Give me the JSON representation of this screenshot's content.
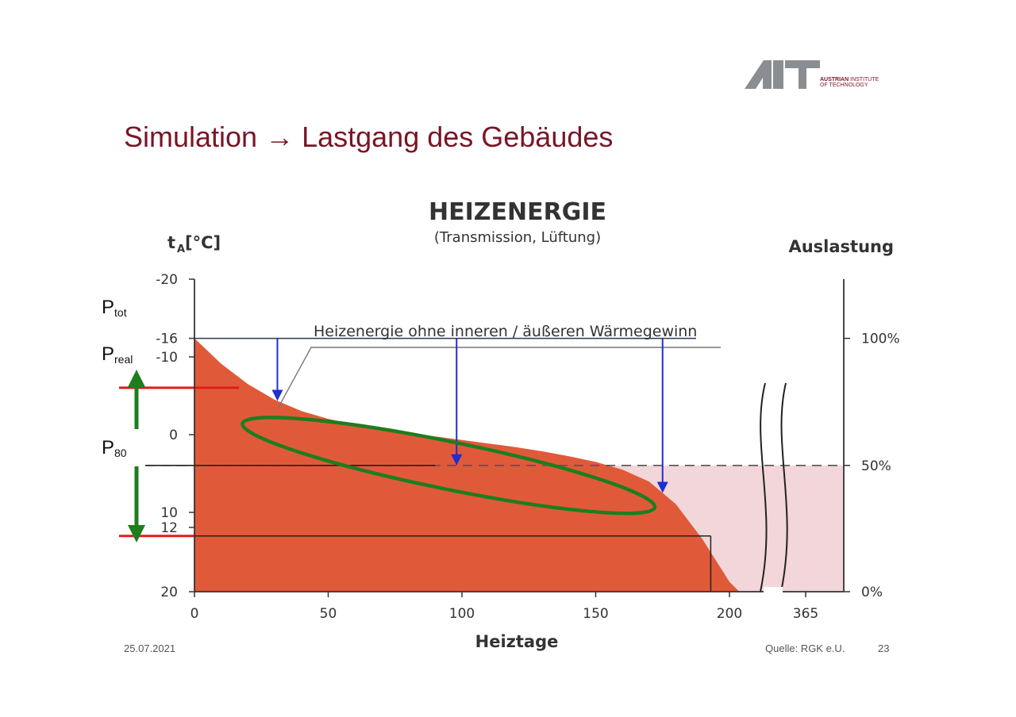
{
  "slide": {
    "title": "Simulation → Lastgang des Gebäudes",
    "date": "25.07.2021",
    "source": "Quelle: RGK e.U.",
    "page_number": "23"
  },
  "logo": {
    "mark": "AIT",
    "line1_bold": "AUSTRIAN",
    "line1": "INSTITUTE",
    "line2": "OF TECHNOLOGY"
  },
  "colors": {
    "title": "#7a1526",
    "heating_fill": "#e05a3a",
    "heating_fill_light": "#ee6a3f",
    "base_fill": "#f2d6d9",
    "arrow_blue": "#1f2fd0",
    "ellipse_green": "#1e7d1e",
    "limit_red": "#e31b1b"
  },
  "p_labels": [
    {
      "main": "P",
      "sub": "tot"
    },
    {
      "main": "P",
      "sub": "real"
    },
    {
      "main": "P",
      "sub": "80"
    }
  ],
  "chart_data": {
    "type": "area",
    "title": "HEIZENERGIE",
    "subtitle": "(Transmission, Lüftung)",
    "xlabel": "Heiztage",
    "ylabel_left": "t",
    "ylabel_left_sub": "A",
    "ylabel_left_unit": " [°C]",
    "ylabel_right": "Auslastung",
    "annotation": "Heizenergie ohne inneren / äußeren Wärmegewinn",
    "x_ticks": [
      "0",
      "50",
      "100",
      "150",
      "200",
      "365"
    ],
    "y_ticks_left": [
      "-20",
      "-16",
      "-10",
      "0",
      "10",
      "12",
      "20"
    ],
    "y_ticks_left_values": [
      -20,
      -16,
      -10,
      0,
      10,
      12,
      20
    ],
    "y_ticks_right": [
      "100%",
      "50%",
      "0%"
    ],
    "y_ticks_right_values": [
      100,
      50,
      0
    ],
    "xlim": [
      0,
      240
    ],
    "ylim_left": [
      -20,
      20
    ],
    "curve": {
      "x": [
        0,
        10,
        20,
        30,
        40,
        50,
        60,
        70,
        80,
        90,
        100,
        110,
        120,
        130,
        140,
        150,
        160,
        170,
        180,
        190,
        200,
        204
      ],
      "t": [
        -16,
        -12.4,
        -9.5,
        -7.3,
        -5.7,
        -4.6,
        -3.8,
        -3.1,
        -2.6,
        -2.1,
        -1.6,
        -1.1,
        -0.6,
        0,
        0.7,
        1.5,
        2.6,
        4.3,
        7.5,
        12.5,
        18.5,
        20
      ]
    },
    "ellipse_region": {
      "x_from": 18,
      "x_to": 172,
      "t_from": -3.2,
      "t_to": 7.2
    },
    "arrows_x": [
      31,
      98,
      175
    ],
    "lines": {
      "p_tot_t": -16,
      "p_real_t": -9,
      "p_80_t": 2,
      "t12_x_end": 193
    }
  }
}
